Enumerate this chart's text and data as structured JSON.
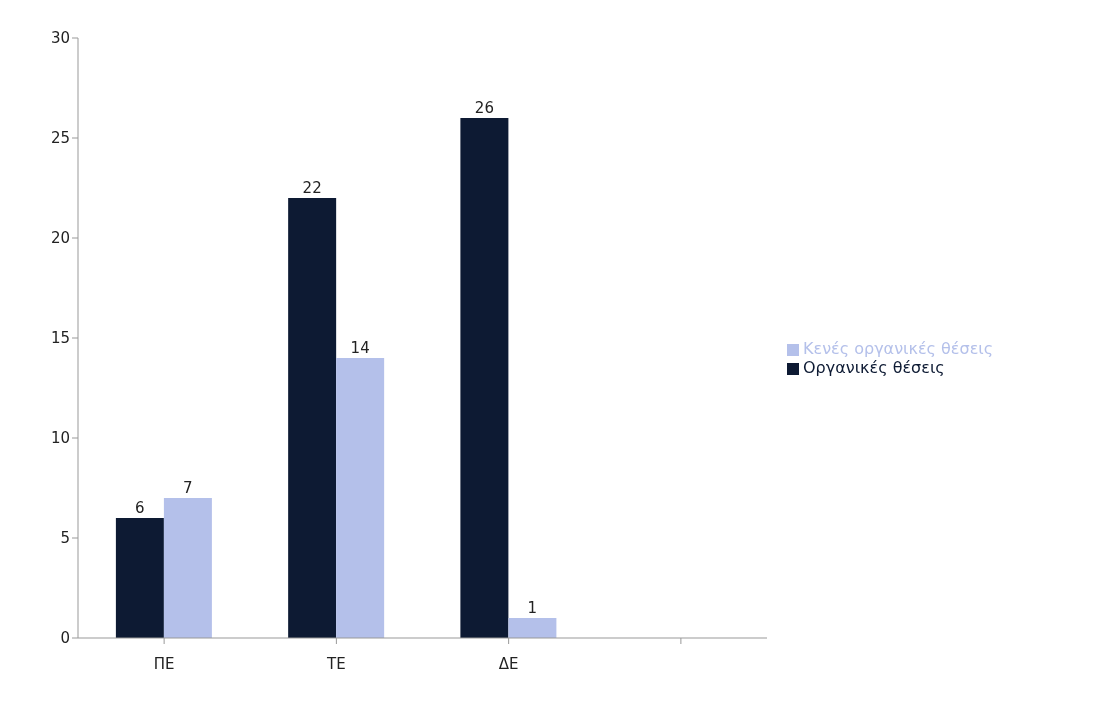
{
  "chart_data": {
    "type": "bar",
    "categories": [
      "ΠΕ",
      "ΤΕ",
      "ΔΕ",
      null
    ],
    "series": [
      {
        "name": "Οργανικές θέσεις",
        "color": "#0d1a33",
        "values": [
          6,
          22,
          26,
          null
        ]
      },
      {
        "name": "Κενές οργανικές θέσεις",
        "color": "#b4c0ea",
        "values": [
          7,
          14,
          1,
          null
        ]
      }
    ],
    "ylim": [
      0,
      30
    ],
    "yticks": [
      0,
      5,
      10,
      15,
      20,
      25,
      30
    ],
    "grid": false,
    "legend": "right",
    "data_labels": true
  }
}
